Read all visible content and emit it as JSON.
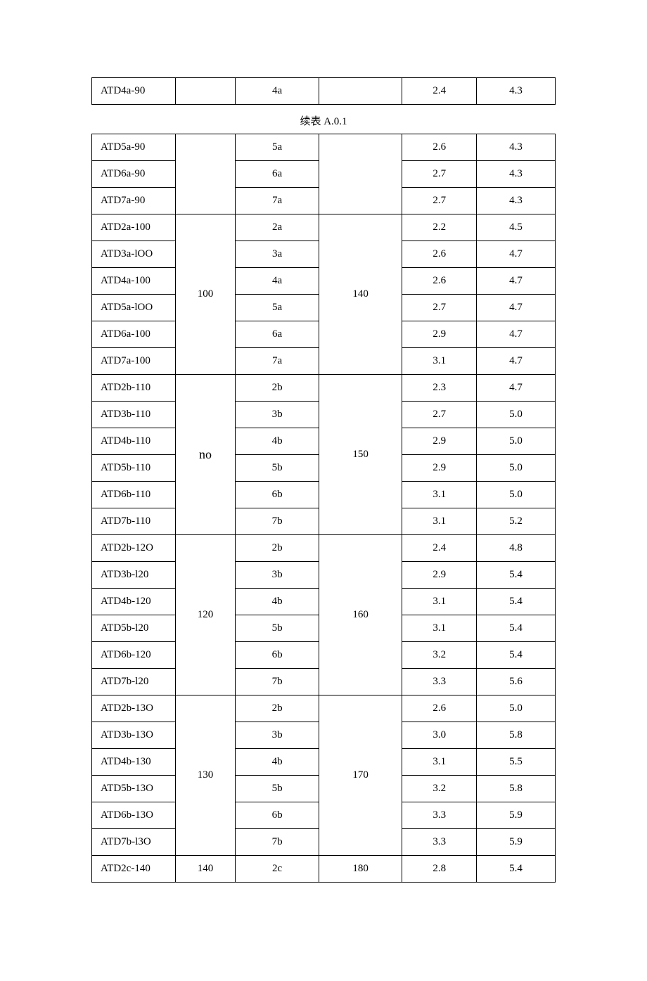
{
  "caption": "续表 A.0.1",
  "table1": {
    "rows": [
      {
        "c1": "ATD4a-90",
        "c2": "",
        "c3": "4a",
        "c4": "",
        "c5": "2.4",
        "c6": "4.3"
      }
    ]
  },
  "table2": {
    "groups": [
      {
        "c2": "",
        "c4": "",
        "rows": [
          {
            "c1": "ATD5a-90",
            "c3": "5a",
            "c5": "2.6",
            "c6": "4.3"
          },
          {
            "c1": "ATD6a-90",
            "c3": "6a",
            "c5": "2.7",
            "c6": "4.3"
          },
          {
            "c1": "ATD7a-90",
            "c3": "7a",
            "c5": "2.7",
            "c6": "4.3"
          }
        ]
      },
      {
        "c2": "100",
        "c4": "140",
        "rows": [
          {
            "c1": "ATD2a-100",
            "c3": "2a",
            "c5": "2.2",
            "c6": "4.5"
          },
          {
            "c1": "ATD3a-lOO",
            "c3": "3a",
            "c5": "2.6",
            "c6": "4.7"
          },
          {
            "c1": "ATD4a-100",
            "c3": "4a",
            "c5": "2.6",
            "c6": "4.7"
          },
          {
            "c1": "ATD5a-lOO",
            "c3": "5a",
            "c5": "2.7",
            "c6": "4.7"
          },
          {
            "c1": "ATD6a-100",
            "c3": "6a",
            "c5": "2.9",
            "c6": "4.7"
          },
          {
            "c1": "ATD7a-100",
            "c3": "7a",
            "c5": "3.1",
            "c6": "4.7"
          }
        ]
      },
      {
        "c2": "no",
        "c2_class": "no-cell",
        "c4": "150",
        "rows": [
          {
            "c1": "ATD2b-110",
            "c3": "2b",
            "c5": "2.3",
            "c6": "4.7"
          },
          {
            "c1": "ATD3b-110",
            "c3": "3b",
            "c5": "2.7",
            "c6": "5.0"
          },
          {
            "c1": "ATD4b-110",
            "c3": "4b",
            "c5": "2.9",
            "c6": "5.0"
          },
          {
            "c1": "ATD5b-110",
            "c3": "5b",
            "c5": "2.9",
            "c6": "5.0"
          },
          {
            "c1": "ATD6b-110",
            "c3": "6b",
            "c5": "3.1",
            "c6": "5.0"
          },
          {
            "c1": "ATD7b-110",
            "c3": "7b",
            "c5": "3.1",
            "c6": "5.2"
          }
        ]
      },
      {
        "c2": "120",
        "c4": "160",
        "rows": [
          {
            "c1": "ATD2b-12O",
            "c3": "2b",
            "c5": "2.4",
            "c6": "4.8"
          },
          {
            "c1": "ATD3b-l20",
            "c3": "3b",
            "c5": "2.9",
            "c6": "5.4"
          },
          {
            "c1": "ATD4b-120",
            "c3": "4b",
            "c5": "3.1",
            "c6": "5.4"
          },
          {
            "c1": "ATD5b-l20",
            "c3": "5b",
            "c5": "3.1",
            "c6": "5.4"
          },
          {
            "c1": "ATD6b-120",
            "c3": "6b",
            "c5": "3.2",
            "c6": "5.4"
          },
          {
            "c1": "ATD7b-l20",
            "c3": "7b",
            "c5": "3.3",
            "c6": "5.6"
          }
        ]
      },
      {
        "c2": "130",
        "c4": "170",
        "rows": [
          {
            "c1": "ATD2b-13O",
            "c3": "2b",
            "c5": "2.6",
            "c6": "5.0"
          },
          {
            "c1": "ATD3b-13O",
            "c3": "3b",
            "c5": "3.0",
            "c6": "5.8"
          },
          {
            "c1": "ATD4b-130",
            "c3": "4b",
            "c5": "3.1",
            "c6": "5.5"
          },
          {
            "c1": "ATD5b-13O",
            "c3": "5b",
            "c5": "3.2",
            "c6": "5.8"
          },
          {
            "c1": "ATD6b-13O",
            "c3": "6b",
            "c5": "3.3",
            "c6": "5.9"
          },
          {
            "c1": "ATD7b-l3O",
            "c3": "7b",
            "c5": "3.3",
            "c6": "5.9"
          }
        ]
      },
      {
        "c2": "140",
        "c4": "180",
        "rows": [
          {
            "c1": "ATD2c-140",
            "c3": "2c",
            "c5": "2.8",
            "c6": "5.4"
          }
        ]
      }
    ]
  }
}
